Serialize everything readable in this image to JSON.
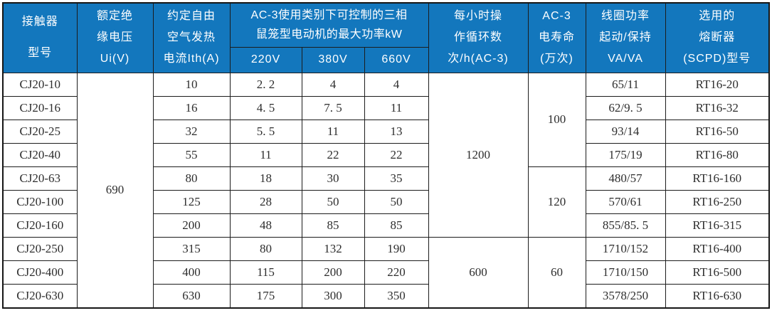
{
  "table": {
    "columns": {
      "model": {
        "lines": [
          "接触器",
          "型号"
        ]
      },
      "ui": {
        "lines": [
          "额定绝",
          "缘电压",
          "Ui(V)"
        ]
      },
      "ith": {
        "lines": [
          "约定自由",
          "空气发热",
          "电流Ith(A)"
        ]
      },
      "power_group": {
        "lines": [
          "AC-3使用类别下可控制的三相",
          "鼠笼型电动机的最大功率kW"
        ],
        "sub": [
          "220V",
          "380V",
          "660V"
        ]
      },
      "cycles": {
        "lines": [
          "每小时操",
          "作循环数",
          "次/h(AC-3)"
        ]
      },
      "life": {
        "lines": [
          "AC-3",
          "电寿命",
          "(万次)"
        ]
      },
      "coil": {
        "lines": [
          "线圈功率",
          "起动/保持",
          "VA/VA"
        ]
      },
      "fuse": {
        "lines": [
          "选用的",
          "熔断器",
          "(SCPD)型号"
        ]
      }
    },
    "rows": [
      {
        "model": "CJ20-10",
        "ith": "10",
        "p220": "2. 2",
        "p380": "4",
        "p660": "4",
        "coil": "65/11",
        "fuse": "RT16-20"
      },
      {
        "model": "CJ20-16",
        "ith": "16",
        "p220": "4. 5",
        "p380": "7. 5",
        "p660": "11",
        "coil": "62/9. 5",
        "fuse": "RT16-32"
      },
      {
        "model": "CJ20-25",
        "ith": "32",
        "p220": "5. 5",
        "p380": "11",
        "p660": "13",
        "coil": "93/14",
        "fuse": "RT16-50"
      },
      {
        "model": "CJ20-40",
        "ith": "55",
        "p220": "11",
        "p380": "22",
        "p660": "22",
        "coil": "175/19",
        "fuse": "RT16-80"
      },
      {
        "model": "CJ20-63",
        "ith": "80",
        "p220": "18",
        "p380": "30",
        "p660": "35",
        "coil": "480/57",
        "fuse": "RT16-160"
      },
      {
        "model": "CJ20-100",
        "ith": "125",
        "p220": "28",
        "p380": "50",
        "p660": "50",
        "coil": "570/61",
        "fuse": "RT16-250"
      },
      {
        "model": "CJ20-160",
        "ith": "200",
        "p220": "48",
        "p380": "85",
        "p660": "85",
        "coil": "855/85. 5",
        "fuse": "RT16-315"
      },
      {
        "model": "CJ20-250",
        "ith": "315",
        "p220": "80",
        "p380": "132",
        "p660": "190",
        "coil": "1710/152",
        "fuse": "RT16-400"
      },
      {
        "model": "CJ20-400",
        "ith": "400",
        "p220": "115",
        "p380": "200",
        "p660": "220",
        "coil": "1710/150",
        "fuse": "RT16-500"
      },
      {
        "model": "CJ20-630",
        "ith": "630",
        "p220": "175",
        "p380": "300",
        "p660": "350",
        "coil": "3578/250",
        "fuse": "RT16-630"
      }
    ],
    "merges": {
      "ui": [
        {
          "value": "690",
          "start": 0,
          "span": 10
        }
      ],
      "cycles": [
        {
          "value": "1200",
          "start": 0,
          "span": 7
        },
        {
          "value": "600",
          "start": 7,
          "span": 3
        }
      ],
      "life": [
        {
          "value": "100",
          "start": 0,
          "span": 4
        },
        {
          "value": "120",
          "start": 4,
          "span": 3
        },
        {
          "value": "60",
          "start": 7,
          "span": 3
        }
      ]
    },
    "colors": {
      "header_bg": "#1377BD",
      "header_text": "#ffffff",
      "border": "#1c1c1c"
    }
  }
}
